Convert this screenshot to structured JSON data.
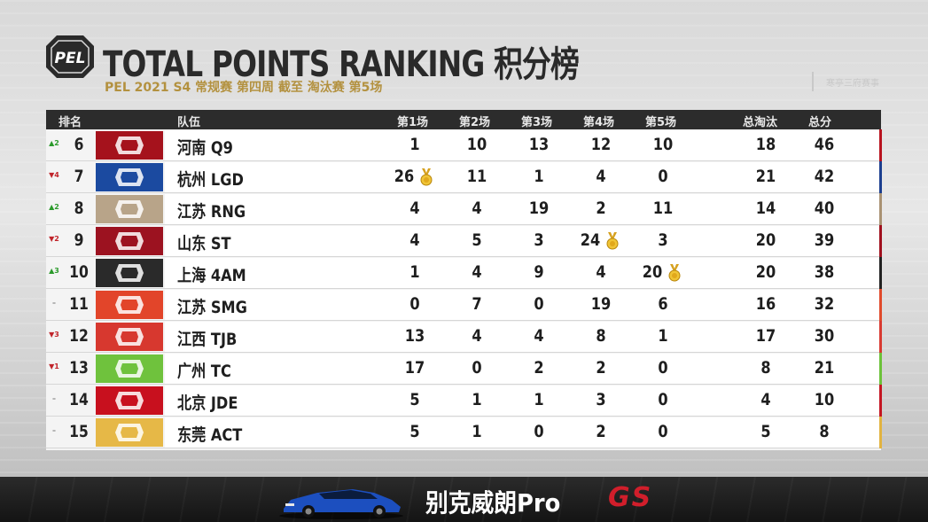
{
  "header": {
    "logo_text": "PEL",
    "title": "TOTAL POINTS RANKING 积分榜",
    "subtitle": "PEL 2021 S4 常规赛 第四周 截至 淘汰赛 第5场",
    "watermark": "寒亭三府赛事"
  },
  "table": {
    "columns": {
      "rank": "排名",
      "team": "队伍",
      "m1": "第1场",
      "m2": "第2场",
      "m3": "第3场",
      "m4": "第4场",
      "m5": "第5场",
      "kills": "总淘汰",
      "total": "总分"
    },
    "rows": [
      {
        "change": "▲2",
        "change_dir": "up",
        "rank": "6",
        "team": "河南 Q9",
        "logo_color": "#a5121c",
        "logo_icon": "q9-logo-icon",
        "m1": "1",
        "m2": "10",
        "m3": "13",
        "m4": "12",
        "m5": "10",
        "kills": "18",
        "total": "46",
        "accent": "#b8131f",
        "medal": ""
      },
      {
        "change": "▼4",
        "change_dir": "down",
        "rank": "7",
        "team": "杭州 LGD",
        "logo_color": "#1b4aa0",
        "logo_icon": "lgd-logo-icon",
        "m1": "26",
        "m2": "11",
        "m3": "1",
        "m4": "4",
        "m5": "0",
        "kills": "21",
        "total": "42",
        "accent": "#1c3f8f",
        "medal": "m1"
      },
      {
        "change": "▲2",
        "change_dir": "up",
        "rank": "8",
        "team": "江苏 RNG",
        "logo_color": "#b8a489",
        "logo_icon": "rng-logo-icon",
        "m1": "4",
        "m2": "4",
        "m3": "19",
        "m4": "2",
        "m5": "11",
        "kills": "14",
        "total": "40",
        "accent": "#a99273",
        "medal": ""
      },
      {
        "change": "▼2",
        "change_dir": "down",
        "rank": "9",
        "team": "山东 ST",
        "logo_color": "#9c1220",
        "logo_icon": "st-logo-icon",
        "m1": "4",
        "m2": "5",
        "m3": "3",
        "m4": "24",
        "m5": "3",
        "kills": "20",
        "total": "39",
        "accent": "#a0101e",
        "medal": "m4"
      },
      {
        "change": "▲3",
        "change_dir": "up",
        "rank": "10",
        "team": "上海 4AM",
        "logo_color": "#2a2a2a",
        "logo_icon": "4am-logo-icon",
        "m1": "1",
        "m2": "4",
        "m3": "9",
        "m4": "4",
        "m5": "20",
        "kills": "20",
        "total": "38",
        "accent": "#222222",
        "medal": "m5"
      },
      {
        "change": "–",
        "change_dir": "same",
        "rank": "11",
        "team": "江苏 SMG",
        "logo_color": "#e2452a",
        "logo_icon": "smg-logo-icon",
        "m1": "0",
        "m2": "7",
        "m3": "0",
        "m4": "19",
        "m5": "6",
        "kills": "16",
        "total": "32",
        "accent": "#e04a2b",
        "medal": ""
      },
      {
        "change": "▼3",
        "change_dir": "down",
        "rank": "12",
        "team": "江西 TJB",
        "logo_color": "#d7382f",
        "logo_icon": "tjb-logo-icon",
        "m1": "13",
        "m2": "4",
        "m3": "4",
        "m4": "8",
        "m5": "1",
        "kills": "17",
        "total": "30",
        "accent": "#d83a31",
        "medal": ""
      },
      {
        "change": "▼1",
        "change_dir": "down",
        "rank": "13",
        "team": "广州 TC",
        "logo_color": "#6fc23d",
        "logo_icon": "tc-logo-icon",
        "m1": "17",
        "m2": "0",
        "m3": "2",
        "m4": "2",
        "m5": "0",
        "kills": "8",
        "total": "21",
        "accent": "#6cc23a",
        "medal": ""
      },
      {
        "change": "–",
        "change_dir": "same",
        "rank": "14",
        "team": "北京 JDE",
        "logo_color": "#c8101e",
        "logo_icon": "jde-logo-icon",
        "m1": "5",
        "m2": "1",
        "m3": "1",
        "m4": "3",
        "m5": "0",
        "kills": "4",
        "total": "10",
        "accent": "#c41622",
        "medal": ""
      },
      {
        "change": "–",
        "change_dir": "same",
        "rank": "15",
        "team": "东莞 ACT",
        "logo_color": "#e6b847",
        "logo_icon": "act-logo-icon",
        "m1": "5",
        "m2": "1",
        "m3": "0",
        "m4": "2",
        "m5": "0",
        "kills": "5",
        "total": "8",
        "accent": "#e2b340",
        "medal": ""
      }
    ]
  },
  "banner": {
    "ad_text": "别克威朗Pro",
    "ad_gs": "GS"
  },
  "colors": {
    "header_bg": "#2c2c2c",
    "gold": "#b3913f",
    "up": "#2b9a2b",
    "down": "#c0242a"
  }
}
